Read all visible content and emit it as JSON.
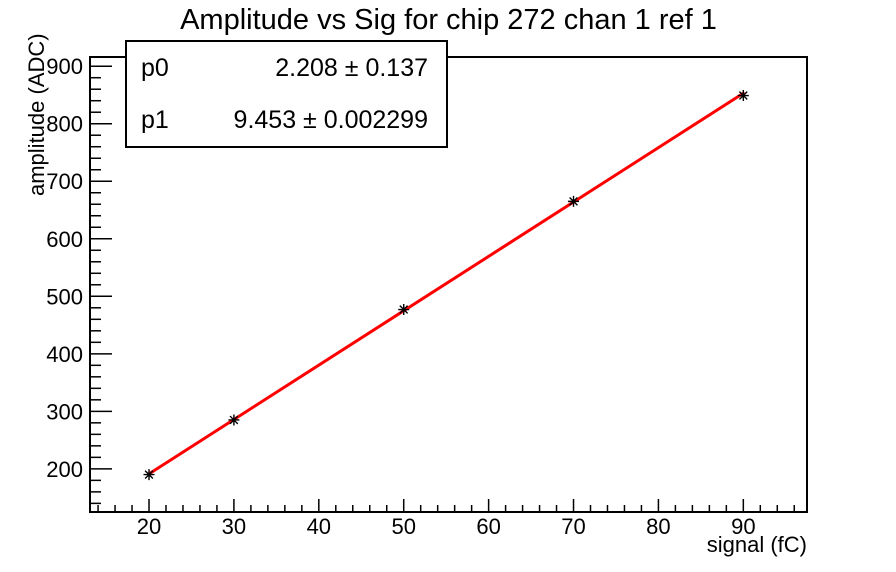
{
  "chart_data": {
    "type": "scatter",
    "title": "Amplitude vs Sig for chip 272 chan 1 ref 1",
    "xlabel": "signal (fC)",
    "ylabel": "amplitude (ADC)",
    "xlim": [
      13.05,
      97.5
    ],
    "ylim": [
      125,
      916
    ],
    "x_major_ticks": [
      20,
      30,
      40,
      50,
      60,
      70,
      80,
      90
    ],
    "x_minor_step": 2,
    "y_major_ticks": [
      200,
      300,
      400,
      500,
      600,
      700,
      800,
      900
    ],
    "y_minor_step": 20,
    "grid": false,
    "legend": "none",
    "frame_color": "#000000",
    "background_color": "#ffffff",
    "series": [
      {
        "name": "measured-points",
        "type": "scatter",
        "marker": "asterisk",
        "color": "#000000",
        "x": [
          20,
          30,
          50,
          70,
          90
        ],
        "y": [
          190,
          285,
          477,
          665,
          849
        ]
      },
      {
        "name": "linear-fit",
        "type": "line",
        "color": "#ff0000",
        "line_width": 3,
        "fit_p0": 2.208,
        "fit_p1": 9.453,
        "x_range": [
          20,
          90
        ]
      }
    ],
    "fit_stats": {
      "rows": [
        {
          "param": "p0",
          "value": "2.208 ± 0.137"
        },
        {
          "param": "p1",
          "value": "9.453 ± 0.002299"
        }
      ]
    }
  }
}
